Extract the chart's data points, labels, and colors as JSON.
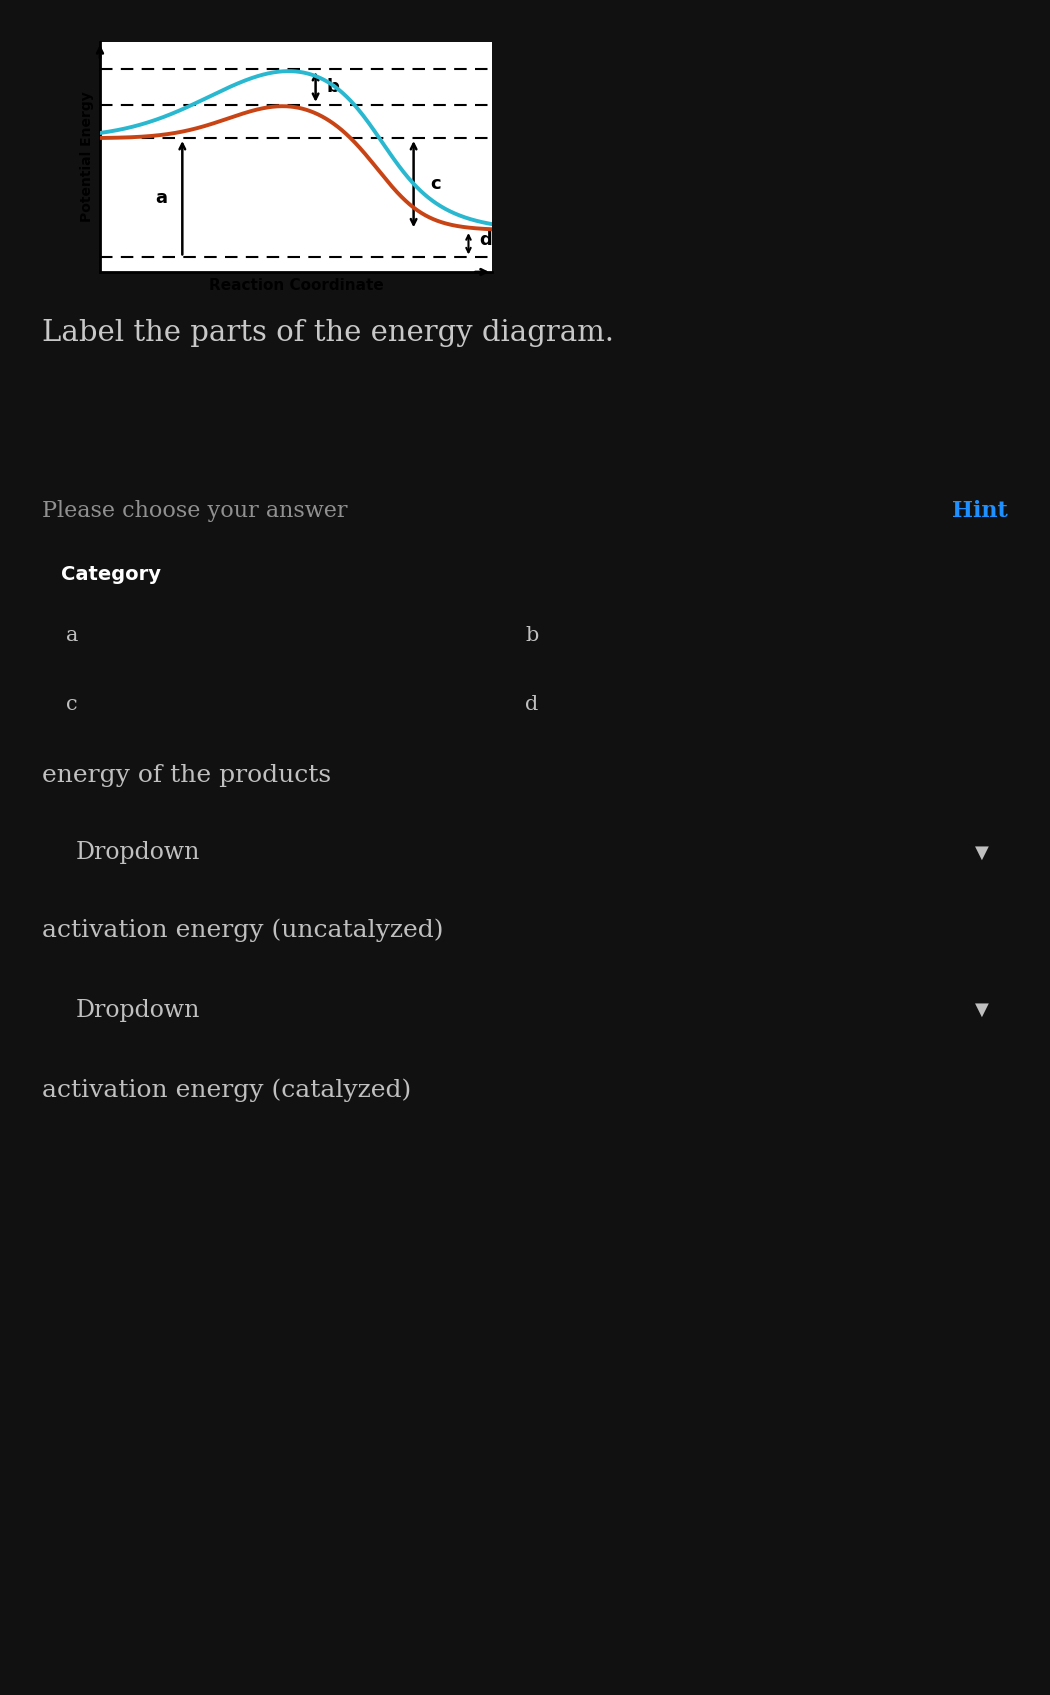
{
  "bg_color": "#111111",
  "chart_bg": "#ffffff",
  "cyan_color": "#29b8d0",
  "red_color": "#c84415",
  "ylabel": "Potential Energy",
  "xlabel": "Reaction Coordinate",
  "label_a": "a",
  "label_b": "b",
  "label_c": "c",
  "label_d": "d",
  "title_text": "Label the parts of the energy diagram.",
  "title_color": "#c8c8c8",
  "title_fontsize": 21,
  "section_header": "Please choose your answer",
  "hint_text": "Hint",
  "hint_color": "#1e90ff",
  "category_header": "Category",
  "cat_bg": "#4a4a4a",
  "cat_border_color": "#5a5a5a",
  "dropdown_bg": "#383838",
  "dropdown_border": "#555555",
  "dropdown_text": "Dropdown",
  "label_color": "#c0c0c0",
  "bottom_text": "activation energy (catalyzed)"
}
